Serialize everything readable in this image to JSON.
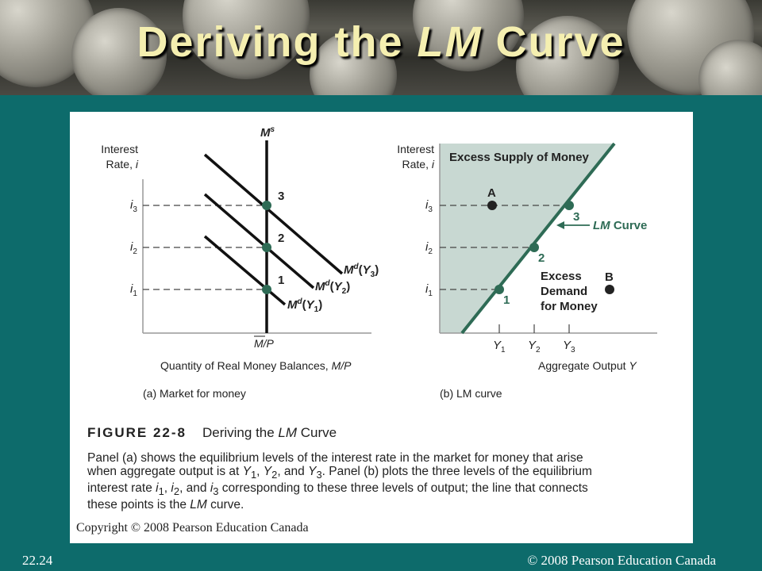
{
  "slide": {
    "title_pre": "Deriving the ",
    "title_ital": "LM",
    "title_post": " Curve",
    "number": "22.24",
    "footer": "© 2008 Pearson Education Canada"
  },
  "panel_a": {
    "y_axis_label_1": "Interest",
    "y_axis_label_2": "Rate,",
    "y_axis_var": "i",
    "x_axis_label": "Quantity of Real Money Balances,",
    "x_axis_var": "M/P",
    "supply_label": "M",
    "supply_sup": "s",
    "supply_tick": "M/P",
    "tick_i3": "i",
    "tick_i2": "i",
    "tick_i1": "i",
    "sub_3": "3",
    "sub_2": "2",
    "sub_1": "1",
    "pt_3": "3",
    "pt_2": "2",
    "pt_1": "1",
    "demand_m": "M",
    "demand_sup": "d",
    "demand_y": "Y",
    "caption": "(a) Market for money"
  },
  "panel_b": {
    "y_axis_label_1": "Interest",
    "y_axis_label_2": "Rate,",
    "y_axis_var": "i",
    "x_axis_label": "Aggregate Output",
    "x_axis_var": "Y",
    "region_excess_supply": "Excess Supply of Money",
    "region_excess_demand_1": "Excess",
    "region_excess_demand_2": "Demand",
    "region_excess_demand_3": "for Money",
    "point_a": "A",
    "point_b": "B",
    "lm_ital": "LM",
    "lm_rest": "Curve",
    "pt_3": "3",
    "pt_2": "2",
    "pt_1": "1",
    "tick_y": "Y",
    "caption": "(b) LM curve"
  },
  "figure": {
    "number": "FIGURE 22-8",
    "title_pre": "Deriving the ",
    "title_ital": "LM",
    "title_post": " Curve",
    "caption": {
      "s1": "Panel (a) shows the equilibrium levels of the interest rate in the market for money that arise",
      "s2": "when aggregate output is at ",
      "s3": ", and ",
      "s4": ". Panel (b) plots the three levels of the equilibrium",
      "s5": "interest rate ",
      "s6": ", and ",
      "s7": " corresponding to these three levels of output; the line that connects",
      "s8": "these points is the ",
      "s9": "LM",
      "s10": " curve.",
      "y1": "Y",
      "y2": "Y",
      "y3": "Y",
      "i1": "i",
      "i2": "i",
      "i3": "i",
      "n1": "1",
      "n2": "2",
      "n3": "3",
      "comma": ", "
    },
    "copyright": "Copyright © 2008 Pearson Education Canada"
  },
  "colors": {
    "slide_bg": "#0d6b6b",
    "title": "#f5efb0",
    "lm_curve": "#2e6b55",
    "excess_supply_fill": "#c8d8d2",
    "point": "#2e6b55"
  }
}
